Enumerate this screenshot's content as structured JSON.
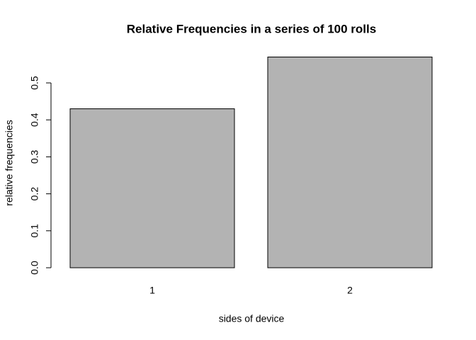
{
  "chart_data": {
    "type": "bar",
    "title": "Relative Frequencies in a series of 100 rolls",
    "x_label": "sides of device",
    "y_label": "relative frequencies",
    "categories": [
      "1",
      "2"
    ],
    "values": [
      0.43,
      0.57
    ],
    "color": "#b3b3b3",
    "edge_color": "#000000",
    "ylim": [
      0,
      0.57
    ],
    "yticks": [
      {
        "value": 0,
        "label": "0.0"
      },
      0.1,
      0.2,
      0.3,
      0.4,
      0.5
    ],
    "grid": false
  }
}
